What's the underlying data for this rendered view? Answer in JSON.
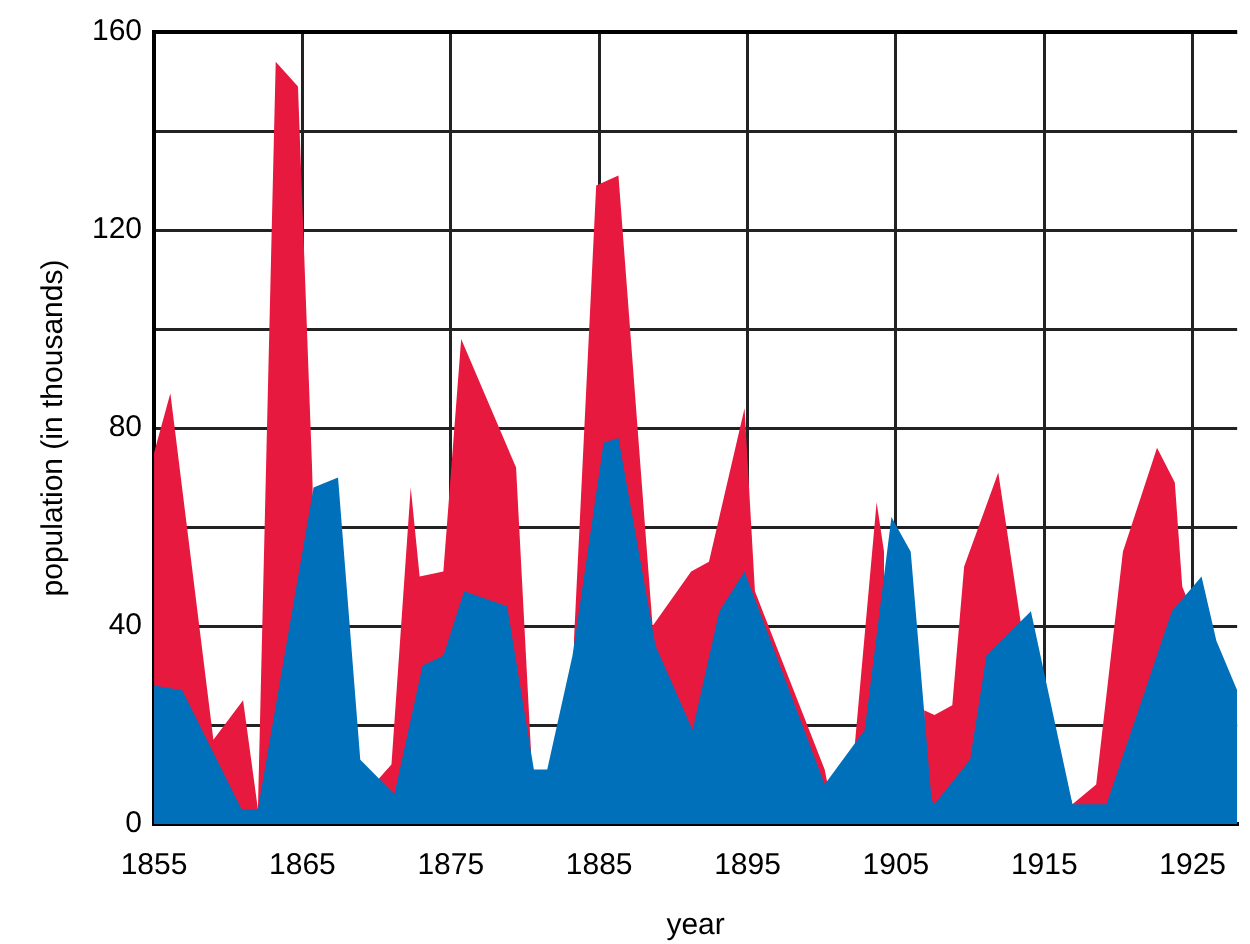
{
  "chart_data": {
    "type": "area",
    "xlabel": "year",
    "ylabel": "population (in thousands)",
    "xlim": [
      1855,
      1928
    ],
    "xticks": [
      1855,
      1865,
      1875,
      1885,
      1895,
      1905,
      1915,
      1925
    ],
    "ylim": [
      0,
      160
    ],
    "yticks": [
      0,
      {
        "value": 20,
        "label": null
      },
      40,
      {
        "value": 60,
        "label": null
      },
      80,
      {
        "value": 100,
        "label": null
      },
      120,
      {
        "value": 140,
        "label": null
      },
      160
    ],
    "grid": true,
    "legend": false,
    "series": [
      {
        "color": "#e8193f",
        "x": [
          1855,
          1856.1,
          1859,
          1861,
          1862,
          1863.2,
          1864.7,
          1865.7,
          1868,
          1870.1,
          1871,
          1872.3,
          1872.9,
          1874.5,
          1875.7,
          1879.4,
          1880.4,
          1882,
          1883.3,
          1884.8,
          1886.3,
          1888.6,
          1891.2,
          1892.4,
          1894.8,
          1895.5,
          1900.2,
          1900.4,
          1902.2,
          1903.7,
          1904.2,
          1905.5,
          1906.9,
          1907.6,
          1908.8,
          1909.6,
          1911.9,
          1913.4,
          1916.9,
          1918.5,
          1920.3,
          1922.6,
          1923.8,
          1924.3,
          1928
        ],
        "values": [
          75,
          87,
          17,
          25,
          3,
          154,
          149,
          68,
          null,
          9,
          12,
          68,
          50,
          51,
          98,
          72,
          15,
          null,
          37,
          129,
          131,
          40,
          51,
          53,
          84,
          47,
          11,
          8,
          15,
          65,
          55,
          null,
          23,
          22,
          24,
          52,
          71,
          41,
          4,
          8,
          55,
          76,
          69,
          48,
          20
        ]
      },
      {
        "color": "#0070bb",
        "x": [
          1855,
          1856.9,
          1860.9,
          1862,
          1865.75,
          1867.4,
          1868.9,
          1871.2,
          1873.1,
          1874.5,
          1875.9,
          1878.8,
          1880.6,
          1881.5,
          1883.2,
          1885.3,
          1886.3,
          1888.8,
          1891.3,
          1893.1,
          1894.8,
          1900.2,
          1902.9,
          1904.7,
          1906,
          1907.4,
          1907.6,
          1910,
          1911.1,
          1914.1,
          1916.9,
          1919.2,
          1923.6,
          1925.6,
          1926.6,
          1928
        ],
        "values": [
          28,
          27,
          3,
          3,
          68,
          70,
          13,
          6,
          32,
          34,
          47,
          44,
          11,
          11,
          34,
          77,
          78,
          36,
          19,
          43,
          51,
          8,
          19,
          62,
          55,
          5,
          4,
          13,
          34,
          43,
          4,
          4,
          43,
          50,
          37,
          27
        ]
      }
    ]
  }
}
